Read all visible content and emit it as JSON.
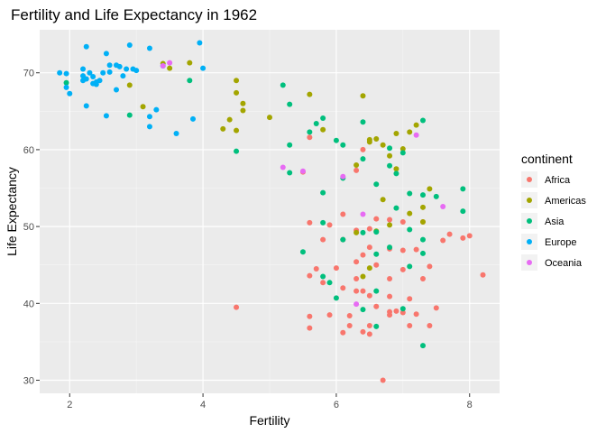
{
  "chart_data": {
    "type": "scatter",
    "title": "Fertility and Life Expectancy in 1962",
    "xlabel": "Fertility",
    "ylabel": "Life Expectancy",
    "xlim": [
      1.55,
      8.45
    ],
    "ylim": [
      28.3,
      75.6
    ],
    "xticks": [
      2,
      4,
      6,
      8
    ],
    "yticks": [
      30,
      40,
      50,
      60,
      70
    ],
    "grid": true,
    "legend": {
      "title": "continent",
      "placement": "right"
    },
    "series": [
      {
        "name": "Africa",
        "color": "#F8766D",
        "points": [
          [
            5.6,
            61.6
          ],
          [
            6.4,
            60.0
          ],
          [
            6.3,
            57.3
          ],
          [
            5.5,
            57.1
          ],
          [
            5.6,
            50.5
          ],
          [
            5.9,
            50.2
          ],
          [
            6.1,
            51.6
          ],
          [
            6.3,
            49.5
          ],
          [
            6.5,
            49.7
          ],
          [
            6.6,
            51.0
          ],
          [
            6.8,
            50.9
          ],
          [
            7.0,
            50.6
          ],
          [
            7.3,
            50.6
          ],
          [
            7.0,
            46.9
          ],
          [
            6.4,
            46.3
          ],
          [
            5.8,
            48.3
          ],
          [
            6.1,
            48.3
          ],
          [
            6.5,
            47.3
          ],
          [
            6.8,
            47.1
          ],
          [
            7.2,
            47.0
          ],
          [
            6.3,
            45.4
          ],
          [
            6.6,
            45.0
          ],
          [
            7.0,
            44.4
          ],
          [
            7.4,
            44.8
          ],
          [
            5.6,
            43.6
          ],
          [
            6.0,
            44.6
          ],
          [
            5.7,
            44.5
          ],
          [
            6.3,
            43.2
          ],
          [
            6.8,
            43.2
          ],
          [
            7.3,
            43.2
          ],
          [
            5.8,
            42.7
          ],
          [
            6.1,
            42.0
          ],
          [
            6.3,
            41.6
          ],
          [
            6.4,
            41.6
          ],
          [
            6.5,
            41.0
          ],
          [
            6.8,
            40.9
          ],
          [
            7.1,
            40.6
          ],
          [
            7.5,
            39.4
          ],
          [
            6.6,
            39.6
          ],
          [
            6.9,
            39.0
          ],
          [
            6.8,
            38.9
          ],
          [
            7.0,
            38.8
          ],
          [
            5.9,
            38.5
          ],
          [
            6.2,
            38.4
          ],
          [
            6.8,
            38.5
          ],
          [
            7.2,
            38.6
          ],
          [
            5.6,
            38.3
          ],
          [
            6.2,
            37.1
          ],
          [
            6.5,
            37.1
          ],
          [
            7.1,
            37.1
          ],
          [
            7.4,
            37.1
          ],
          [
            5.6,
            36.8
          ],
          [
            6.1,
            36.2
          ],
          [
            6.4,
            36.3
          ],
          [
            6.5,
            36.0
          ],
          [
            4.5,
            39.5
          ],
          [
            6.7,
            30.0
          ],
          [
            7.6,
            48.2
          ],
          [
            7.9,
            48.5
          ],
          [
            8.0,
            48.8
          ],
          [
            8.2,
            43.7
          ],
          [
            7.7,
            49.0
          ]
        ]
      },
      {
        "name": "Americas",
        "color": "#A3A500",
        "points": [
          [
            3.4,
            71.2
          ],
          [
            3.8,
            71.3
          ],
          [
            2.9,
            68.4
          ],
          [
            3.1,
            65.6
          ],
          [
            3.5,
            70.6
          ],
          [
            4.3,
            62.7
          ],
          [
            4.4,
            63.9
          ],
          [
            4.5,
            62.5
          ],
          [
            4.5,
            69.0
          ],
          [
            4.6,
            66.0
          ],
          [
            4.6,
            65.1
          ],
          [
            4.5,
            67.4
          ],
          [
            5.0,
            64.2
          ],
          [
            5.6,
            67.2
          ],
          [
            5.8,
            62.6
          ],
          [
            6.4,
            67.0
          ],
          [
            6.5,
            61.3
          ],
          [
            6.6,
            61.4
          ],
          [
            6.5,
            61.0
          ],
          [
            6.7,
            60.6
          ],
          [
            6.8,
            59.2
          ],
          [
            6.9,
            62.1
          ],
          [
            7.1,
            62.3
          ],
          [
            7.2,
            63.2
          ],
          [
            6.9,
            57.5
          ],
          [
            6.3,
            58.0
          ],
          [
            7.1,
            51.7
          ],
          [
            6.7,
            53.5
          ],
          [
            7.4,
            54.9
          ],
          [
            6.5,
            44.6
          ],
          [
            6.4,
            43.5
          ],
          [
            6.6,
            49.4
          ],
          [
            7.3,
            52.5
          ],
          [
            7.3,
            50.6
          ],
          [
            6.8,
            50.2
          ],
          [
            7.0,
            60.1
          ],
          [
            6.3,
            49.2
          ]
        ]
      },
      {
        "name": "Asia",
        "color": "#00BF7D",
        "points": [
          [
            1.95,
            68.7
          ],
          [
            2.9,
            64.5
          ],
          [
            3.8,
            69.0
          ],
          [
            4.5,
            59.8
          ],
          [
            5.2,
            68.4
          ],
          [
            5.3,
            65.9
          ],
          [
            5.3,
            60.6
          ],
          [
            5.6,
            62.3
          ],
          [
            5.7,
            63.4
          ],
          [
            5.8,
            64.1
          ],
          [
            6.0,
            61.2
          ],
          [
            6.1,
            60.6
          ],
          [
            5.3,
            57.0
          ],
          [
            5.8,
            54.4
          ],
          [
            6.1,
            56.3
          ],
          [
            6.4,
            58.8
          ],
          [
            6.4,
            63.6
          ],
          [
            6.6,
            55.5
          ],
          [
            6.8,
            57.9
          ],
          [
            6.8,
            60.2
          ],
          [
            7.0,
            59.6
          ],
          [
            7.3,
            63.8
          ],
          [
            7.1,
            54.3
          ],
          [
            7.3,
            54.1
          ],
          [
            7.5,
            53.9
          ],
          [
            7.9,
            54.9
          ],
          [
            7.9,
            52.0
          ],
          [
            6.9,
            52.4
          ],
          [
            7.1,
            49.6
          ],
          [
            7.3,
            48.3
          ],
          [
            7.3,
            46.5
          ],
          [
            6.4,
            49.2
          ],
          [
            6.6,
            49.3
          ],
          [
            6.6,
            46.4
          ],
          [
            6.8,
            47.3
          ],
          [
            6.1,
            48.3
          ],
          [
            5.5,
            46.7
          ],
          [
            5.8,
            43.5
          ],
          [
            5.9,
            42.7
          ],
          [
            6.0,
            40.7
          ],
          [
            6.6,
            41.6
          ],
          [
            6.4,
            39.2
          ],
          [
            7.0,
            39.3
          ],
          [
            6.6,
            37.0
          ],
          [
            7.3,
            34.5
          ],
          [
            7.1,
            44.8
          ],
          [
            5.8,
            50.5
          ],
          [
            6.9,
            56.9
          ]
        ]
      },
      {
        "name": "Europe",
        "color": "#00B0F6",
        "points": [
          [
            1.85,
            70.0
          ],
          [
            1.95,
            69.9
          ],
          [
            1.95,
            68.1
          ],
          [
            2.0,
            67.3
          ],
          [
            2.2,
            70.5
          ],
          [
            2.2,
            69.6
          ],
          [
            2.2,
            69.0
          ],
          [
            2.25,
            73.4
          ],
          [
            2.3,
            70.0
          ],
          [
            2.35,
            69.5
          ],
          [
            2.35,
            68.6
          ],
          [
            2.4,
            68.8
          ],
          [
            2.45,
            69.0
          ],
          [
            2.5,
            70.0
          ],
          [
            2.55,
            72.5
          ],
          [
            2.6,
            71.0
          ],
          [
            2.6,
            70.1
          ],
          [
            2.7,
            71.0
          ],
          [
            2.7,
            67.8
          ],
          [
            2.75,
            70.8
          ],
          [
            2.8,
            69.6
          ],
          [
            2.85,
            70.5
          ],
          [
            2.9,
            73.6
          ],
          [
            2.95,
            70.5
          ],
          [
            3.0,
            70.3
          ],
          [
            3.2,
            73.2
          ],
          [
            3.2,
            64.3
          ],
          [
            3.2,
            63.0
          ],
          [
            3.3,
            65.2
          ],
          [
            3.4,
            70.9
          ],
          [
            3.6,
            62.1
          ],
          [
            3.85,
            64.0
          ],
          [
            3.95,
            73.9
          ],
          [
            4.0,
            70.6
          ],
          [
            2.25,
            65.7
          ],
          [
            2.55,
            64.4
          ],
          [
            2.25,
            69.2
          ],
          [
            2.4,
            68.5
          ]
        ]
      },
      {
        "name": "Oceania",
        "color": "#E76BF3",
        "points": [
          [
            3.4,
            70.9
          ],
          [
            3.5,
            71.3
          ],
          [
            5.2,
            57.7
          ],
          [
            5.5,
            57.2
          ],
          [
            6.1,
            56.5
          ],
          [
            6.4,
            51.6
          ],
          [
            6.3,
            39.9
          ],
          [
            7.2,
            61.9
          ],
          [
            7.6,
            52.6
          ]
        ]
      }
    ]
  }
}
